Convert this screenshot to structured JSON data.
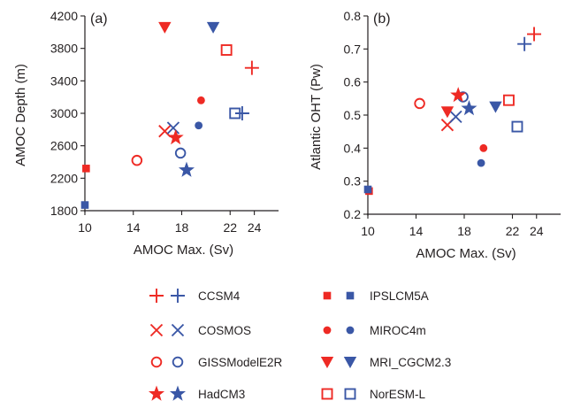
{
  "colors": {
    "red": "#ee2a24",
    "blue": "#3a57a6",
    "axis": "#231f20"
  },
  "legend": {
    "position": "bottom",
    "entries": [
      {
        "name": "CCSM4",
        "marker": "plus"
      },
      {
        "name": "COSMOS",
        "marker": "cross"
      },
      {
        "name": "GISSModelE2R",
        "marker": "circle-open"
      },
      {
        "name": "HadCM3",
        "marker": "star"
      },
      {
        "name": "IPSLCM5A",
        "marker": "square-filled"
      },
      {
        "name": "MIROC4m",
        "marker": "circle-filled"
      },
      {
        "name": "MRI_CGCM2.3",
        "marker": "triangle-down"
      },
      {
        "name": "NorESM-L",
        "marker": "square-open"
      }
    ],
    "color_series": [
      "red",
      "blue"
    ]
  },
  "chart_data": [
    {
      "type": "scatter",
      "panel_label": "(a)",
      "xlabel": "AMOC Max. (Sv)",
      "ylabel": "AMOC Depth (m)",
      "xlim": [
        10,
        26
      ],
      "ylim": [
        1800,
        4200
      ],
      "xticks": [
        "10",
        "14",
        "18",
        "22",
        "24"
      ],
      "xtick_values": [
        10,
        14,
        18,
        22,
        24
      ],
      "yticks": [
        "1800",
        "2200",
        "2600",
        "3000",
        "3400",
        "3800",
        "4200"
      ],
      "ytick_values": [
        1800,
        2200,
        2600,
        3000,
        3400,
        3800,
        4200
      ],
      "points": [
        {
          "model": "CCSM4",
          "color": "red",
          "x": 23.8,
          "y": 3560
        },
        {
          "model": "CCSM4",
          "color": "blue",
          "x": 23.0,
          "y": 3000
        },
        {
          "model": "COSMOS",
          "color": "red",
          "x": 16.6,
          "y": 2780
        },
        {
          "model": "COSMOS",
          "color": "blue",
          "x": 17.3,
          "y": 2820
        },
        {
          "model": "GISSModelE2R",
          "color": "red",
          "x": 14.3,
          "y": 2420
        },
        {
          "model": "GISSModelE2R",
          "color": "blue",
          "x": 17.9,
          "y": 2510
        },
        {
          "model": "HadCM3",
          "color": "red",
          "x": 17.5,
          "y": 2700
        },
        {
          "model": "HadCM3",
          "color": "blue",
          "x": 18.4,
          "y": 2300
        },
        {
          "model": "IPSLCM5A",
          "color": "red",
          "x": 10.1,
          "y": 2320
        },
        {
          "model": "IPSLCM5A",
          "color": "blue",
          "x": 10.0,
          "y": 1870
        },
        {
          "model": "MIROC4m",
          "color": "red",
          "x": 19.6,
          "y": 3160
        },
        {
          "model": "MIROC4m",
          "color": "blue",
          "x": 19.4,
          "y": 2850
        },
        {
          "model": "MRI_CGCM2.3",
          "color": "red",
          "x": 16.6,
          "y": 4060
        },
        {
          "model": "MRI_CGCM2.3",
          "color": "blue",
          "x": 20.6,
          "y": 4060
        },
        {
          "model": "NorESM-L",
          "color": "red",
          "x": 21.7,
          "y": 3780
        },
        {
          "model": "NorESM-L",
          "color": "blue",
          "x": 22.4,
          "y": 3000
        }
      ]
    },
    {
      "type": "scatter",
      "panel_label": "(b)",
      "xlabel": "AMOC Max. (Sv)",
      "ylabel": "Atlantic OHT (Pw)",
      "xlim": [
        10,
        26
      ],
      "ylim": [
        0.2,
        0.8
      ],
      "xticks": [
        "10",
        "14",
        "18",
        "22",
        "24"
      ],
      "xtick_values": [
        10,
        14,
        18,
        22,
        24
      ],
      "yticks": [
        "0.2",
        "0.3",
        "0.4",
        "0.5",
        "0.6",
        "0.7",
        "0.8"
      ],
      "ytick_values": [
        0.2,
        0.3,
        0.4,
        0.5,
        0.6,
        0.7,
        0.8
      ],
      "points": [
        {
          "model": "CCSM4",
          "color": "red",
          "x": 23.8,
          "y": 0.745
        },
        {
          "model": "CCSM4",
          "color": "blue",
          "x": 23.0,
          "y": 0.715
        },
        {
          "model": "COSMOS",
          "color": "red",
          "x": 16.6,
          "y": 0.47
        },
        {
          "model": "COSMOS",
          "color": "blue",
          "x": 17.3,
          "y": 0.495
        },
        {
          "model": "GISSModelE2R",
          "color": "red",
          "x": 14.3,
          "y": 0.535
        },
        {
          "model": "GISSModelE2R",
          "color": "blue",
          "x": 17.9,
          "y": 0.555
        },
        {
          "model": "HadCM3",
          "color": "red",
          "x": 17.5,
          "y": 0.56
        },
        {
          "model": "HadCM3",
          "color": "blue",
          "x": 18.4,
          "y": 0.52
        },
        {
          "model": "IPSLCM5A",
          "color": "red",
          "x": 10.1,
          "y": 0.27
        },
        {
          "model": "IPSLCM5A",
          "color": "blue",
          "x": 10.0,
          "y": 0.275
        },
        {
          "model": "MIROC4m",
          "color": "red",
          "x": 19.6,
          "y": 0.4
        },
        {
          "model": "MIROC4m",
          "color": "blue",
          "x": 19.4,
          "y": 0.355
        },
        {
          "model": "MRI_CGCM2.3",
          "color": "red",
          "x": 16.6,
          "y": 0.51
        },
        {
          "model": "MRI_CGCM2.3",
          "color": "blue",
          "x": 20.6,
          "y": 0.525
        },
        {
          "model": "NorESM-L",
          "color": "red",
          "x": 21.7,
          "y": 0.545
        },
        {
          "model": "NorESM-L",
          "color": "blue",
          "x": 22.4,
          "y": 0.465
        }
      ]
    }
  ]
}
